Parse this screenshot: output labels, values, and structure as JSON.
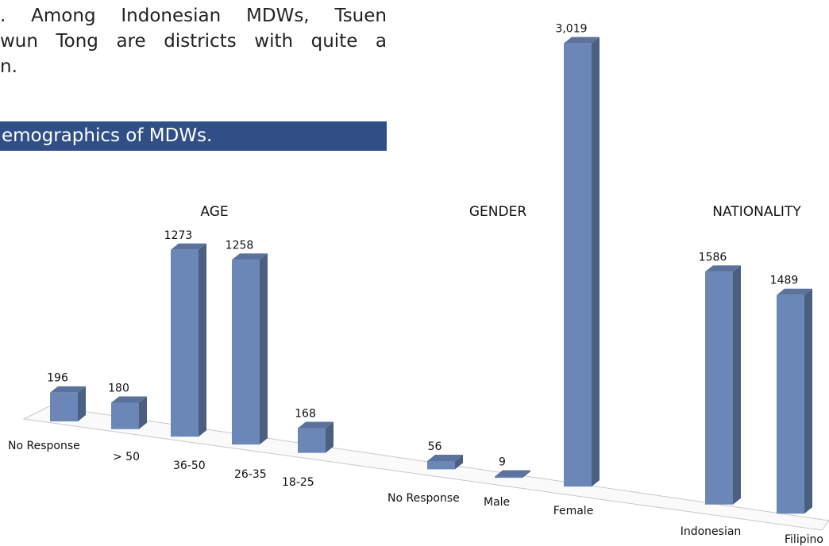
{
  "text_lines": [
    ". Among Indonesian MDWs, Tsuen",
    "wun Tong are districts with quite a",
    "n."
  ],
  "banner": "emographics of MDWs.",
  "chart_data": {
    "type": "bar",
    "groups": [
      {
        "name": "AGE",
        "categories": [
          "No Response",
          "> 50",
          "36-50",
          "26-35",
          "18-25"
        ],
        "values": [
          196,
          180,
          1273,
          1258,
          168
        ]
      },
      {
        "name": "GENDER",
        "categories": [
          "No Response",
          "Male",
          "Female"
        ],
        "values": [
          56,
          9,
          3019
        ],
        "value_labels": [
          "56",
          "9",
          "3,019"
        ]
      },
      {
        "name": "NATIONALITY",
        "categories": [
          "Indonesian",
          "Filipino"
        ],
        "values": [
          1586,
          1489
        ]
      }
    ],
    "color": "#6b87b8"
  }
}
